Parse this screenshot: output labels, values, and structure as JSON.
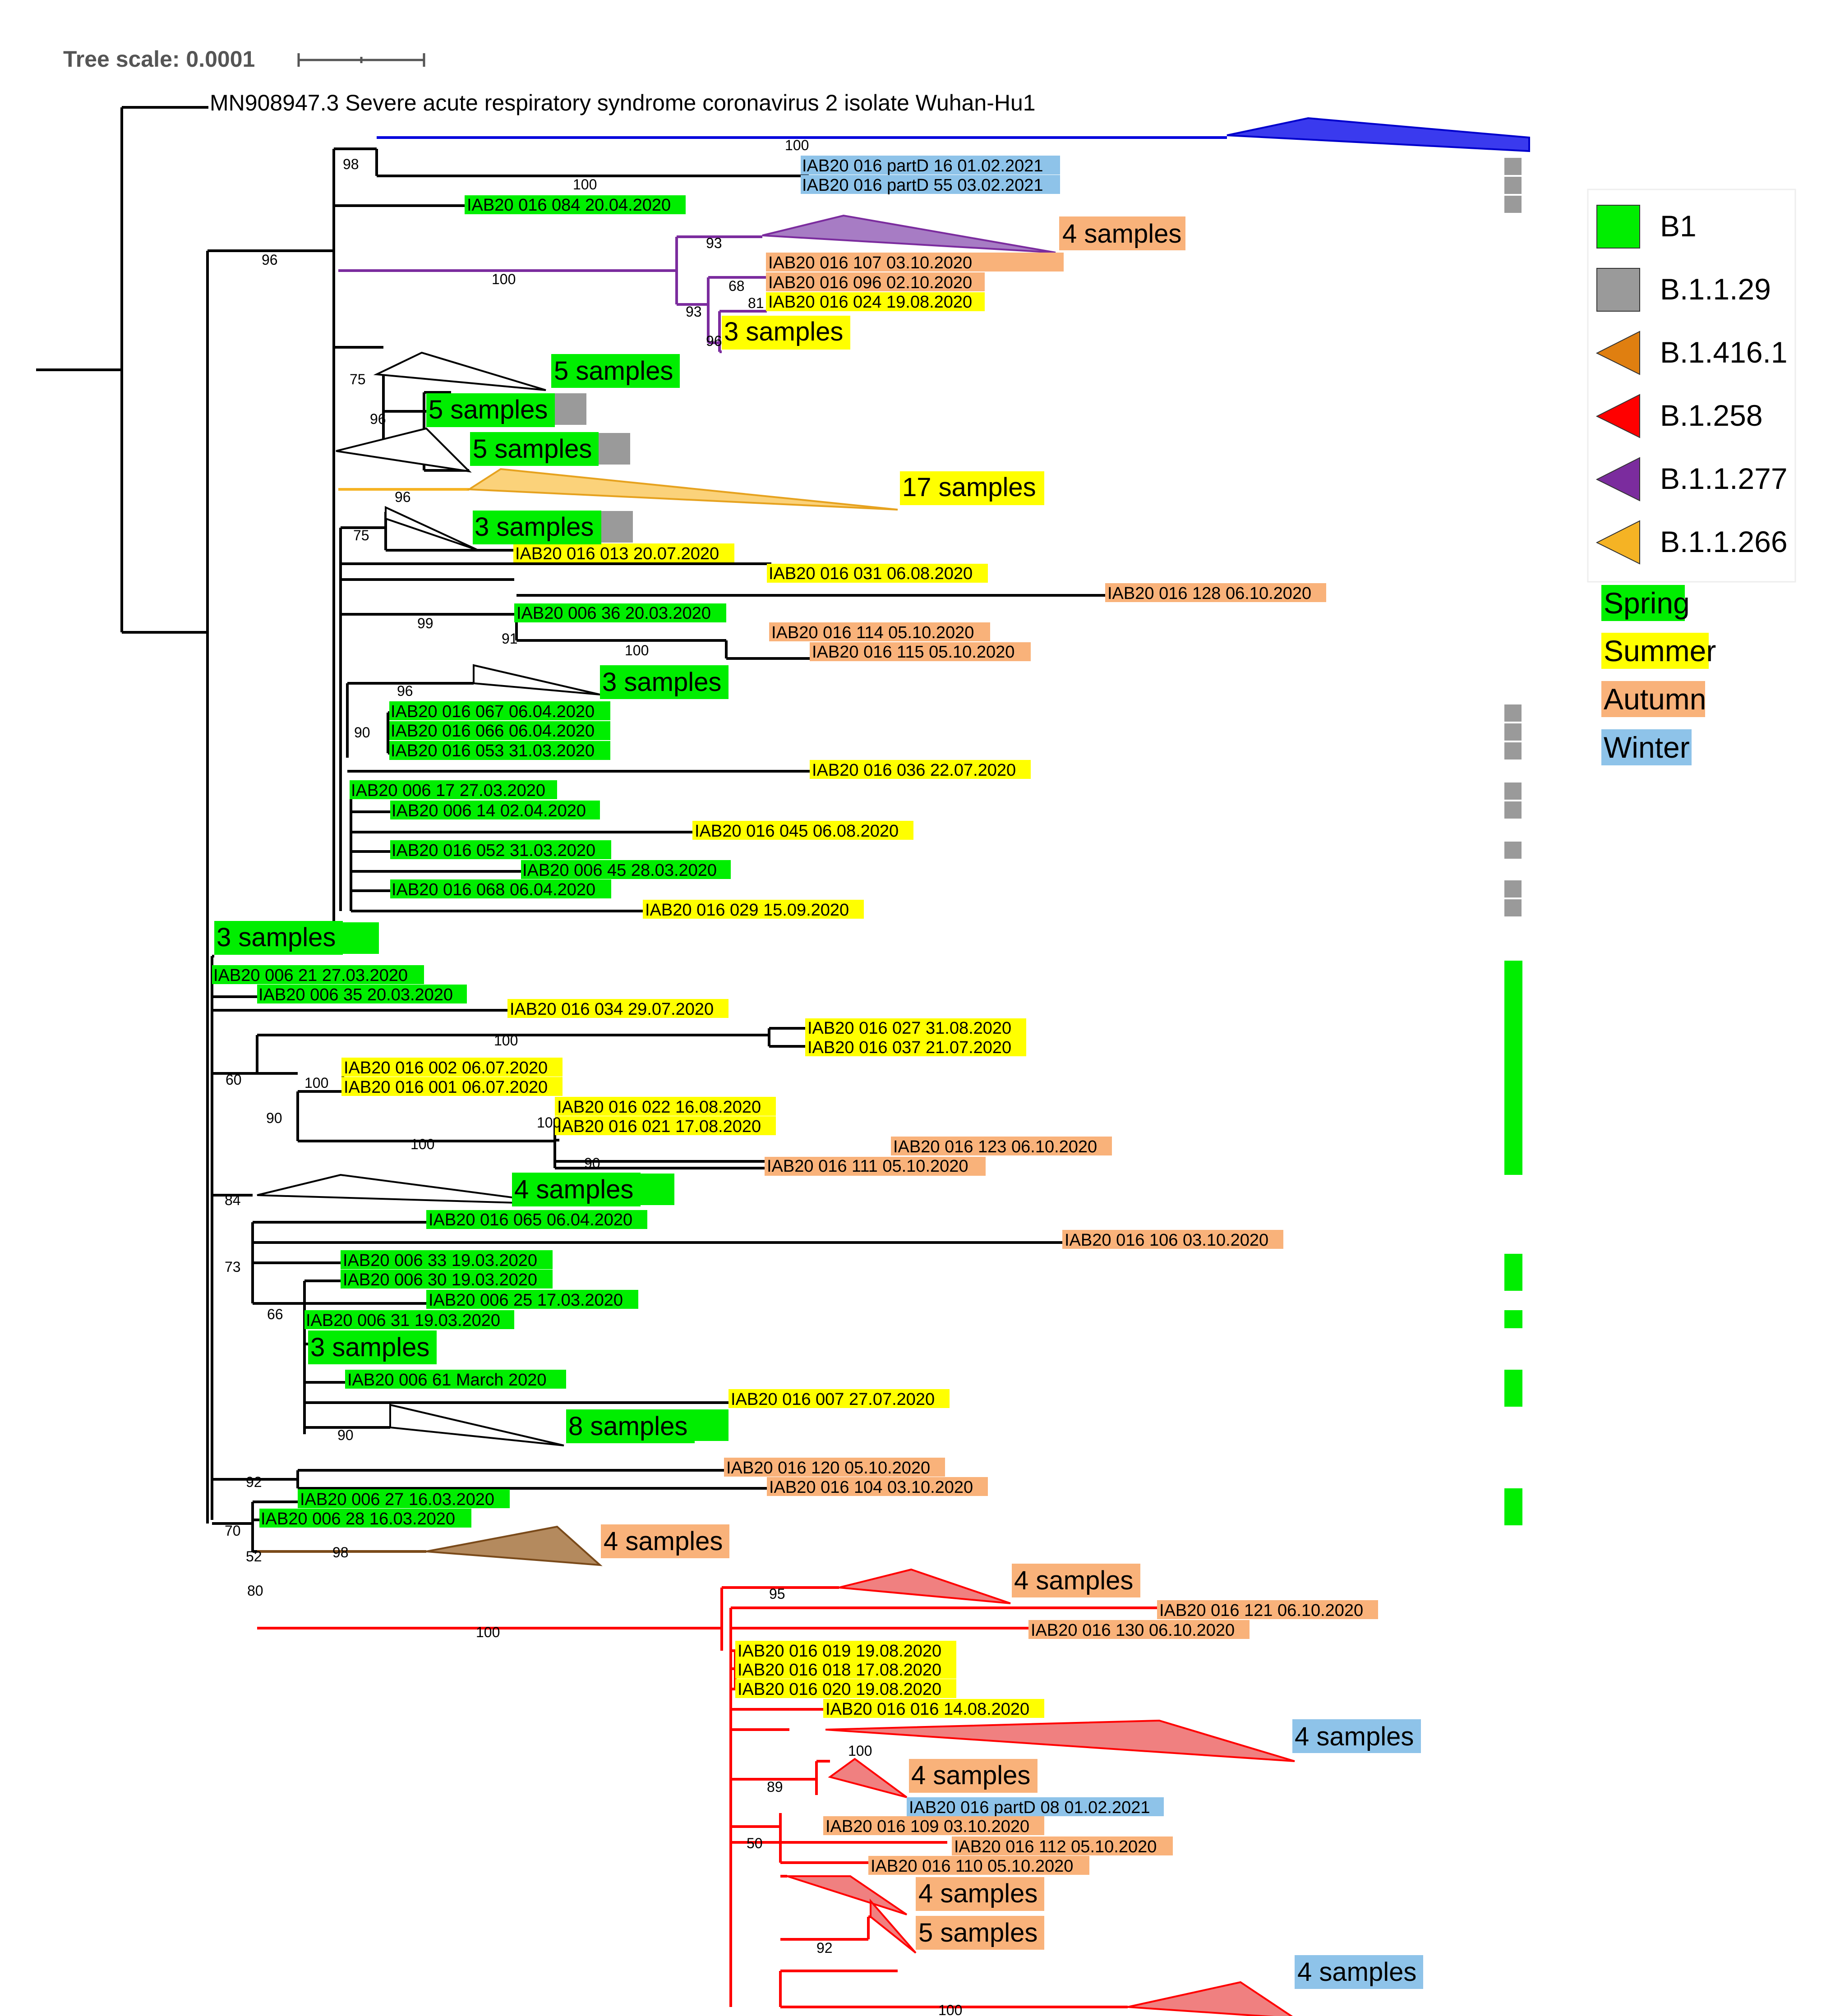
{
  "scale": {
    "label": "Tree scale: 0.0001"
  },
  "root_label": "MN908947.3 Severe acute respiratory syndrome coronavirus 2 isolate Wuhan-Hu1",
  "colors": {
    "spring": "#00ee00",
    "summer": "#ffff00",
    "autumn": "#f9b27a",
    "winter": "#8ec3e9",
    "grey": "#9a9a9a",
    "blue": "#0000dd",
    "purple": "#7b2c9e",
    "orange_clade": "#f5b324",
    "brown": "#7a4a1a",
    "red": "#ff0000"
  },
  "leaves": {
    "l1": "IAB20 016 partD 16 01.02.2021",
    "l2": "IAB20 016 partD 55 03.02.2021",
    "l3": "IAB20 016 084 20.04.2020",
    "l4": "IAB20 016 107 03.10.2020",
    "l5": "IAB20 016 096 02.10.2020",
    "l6": "IAB20 016 024 19.08.2020",
    "l7": "IAB20 016 013 20.07.2020",
    "l8": "IAB20 016 031 06.08.2020",
    "l9": "IAB20 016 128 06.10.2020",
    "l10": "IAB20 006 36 20.03.2020",
    "l11": "IAB20 016 114 05.10.2020",
    "l12": "IAB20 016 115 05.10.2020",
    "l13": "IAB20 016 067 06.04.2020",
    "l14": "IAB20 016 066 06.04.2020",
    "l15": "IAB20 016 053 31.03.2020",
    "l16": "IAB20 016 036 22.07.2020",
    "l17": "IAB20 006 17 27.03.2020",
    "l18": "IAB20 006 14 02.04.2020",
    "l19": "IAB20 016 045 06.08.2020",
    "l20": "IAB20 016 052 31.03.2020",
    "l21": "IAB20 006 45 28.03.2020",
    "l22": "IAB20 016 068 06.04.2020",
    "l23": "IAB20 016 029 15.09.2020",
    "l24": "IAB20 006 21 27.03.2020",
    "l25": "IAB20 006 35 20.03.2020",
    "l26": "IAB20 016 034 29.07.2020",
    "l27": "IAB20 016 027 31.08.2020",
    "l28": "IAB20 016 037 21.07.2020",
    "l29": "IAB20 016 002 06.07.2020",
    "l30": "IAB20 016 001 06.07.2020",
    "l31": "IAB20 016 022 16.08.2020",
    "l32": "IAB20 016 021 17.08.2020",
    "l33": "IAB20 016 123 06.10.2020",
    "l34": "IAB20 016 111 05.10.2020",
    "l35": "IAB20 016 065 06.04.2020",
    "l36": "IAB20 016 106 03.10.2020",
    "l37": "IAB20 006 33 19.03.2020",
    "l38": "IAB20 006 30 19.03.2020",
    "l39": "IAB20 006 25 17.03.2020",
    "l40": "IAB20 006 31 19.03.2020",
    "l41": "IAB20 006 61 March 2020",
    "l42": "IAB20 016 007 27.07.2020",
    "l43": "IAB20 016 120 05.10.2020",
    "l44": "IAB20 016 104 03.10.2020",
    "l45": "IAB20 006 27 16.03.2020",
    "l46": "IAB20 006 28 16.03.2020",
    "l47": "IAB20 016 121 06.10.2020",
    "l48": "IAB20 016 130 06.10.2020",
    "l49": "IAB20 016 019 19.08.2020",
    "l50": "IAB20 016 018 17.08.2020",
    "l51": "IAB20 016 020 19.08.2020",
    "l52": "IAB20 016 016 14.08.2020",
    "l53": "IAB20 016 partD 08 01.02.2021",
    "l54": "IAB20 016 109 03.10.2020",
    "l55": "IAB20 016 112 05.10.2020",
    "l56": "IAB20 016 110 05.10.2020"
  },
  "clades": {
    "c1": "4 samples",
    "c2": "3 samples",
    "c3": "5 samples",
    "c4": "5 samples",
    "c5": "5 samples",
    "c6": "17 samples",
    "c7": "3 samples",
    "c8": "3 samples",
    "c9": "3 samples",
    "c10": "4 samples",
    "c11": "3 samples",
    "c12": "8 samples",
    "c13": "4 samples",
    "c14": "4 samples",
    "c15": "4 samples",
    "c16": "4 samples",
    "c17": "4 samples",
    "c18": "5 samples",
    "c19": "4 samples"
  },
  "support": {
    "s1": "98",
    "s2": "100",
    "s3": "100",
    "s4": "96",
    "s5": "93",
    "s6": "100",
    "s7": "68",
    "s8": "81",
    "s9": "93",
    "s10": "96",
    "s11": "75",
    "s12": "96",
    "s13": "96",
    "s14": "75",
    "s15": "99",
    "s16": "91",
    "s17": "100",
    "s18": "96",
    "s19": "90",
    "s20": "100",
    "s21": "60",
    "s22": "100",
    "s23": "90",
    "s24": "100",
    "s25": "100",
    "s26": "90",
    "s27": "84",
    "s28": "73",
    "s29": "66",
    "s30": "90",
    "s31": "92",
    "s32": "70",
    "s33": "52",
    "s34": "98",
    "s35": "80",
    "s36": "100",
    "s37": "95",
    "s38": "100",
    "s39": "89",
    "s40": "50",
    "s41": "92",
    "s42": "100"
  },
  "legend": {
    "lineages": [
      "B1",
      "B.1.1.29",
      "B.1.416.1",
      "B.1.258",
      "B.1.1.277",
      "B.1.1.266"
    ],
    "seasons": [
      "Spring",
      "Summer",
      "Autumn",
      "Winter"
    ]
  }
}
